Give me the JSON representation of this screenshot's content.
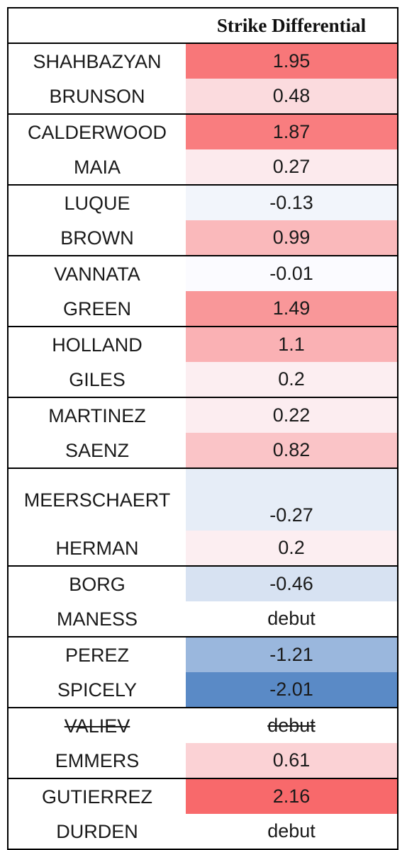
{
  "chart_data": {
    "type": "table",
    "header": "Strike Differential",
    "groups": [
      [
        {
          "name": "SHAHBAZYAN",
          "value": "1.95"
        },
        {
          "name": "BRUNSON",
          "value": "0.48"
        }
      ],
      [
        {
          "name": "CALDERWOOD",
          "value": "1.87"
        },
        {
          "name": "MAIA",
          "value": "0.27"
        }
      ],
      [
        {
          "name": "LUQUE",
          "value": "-0.13"
        },
        {
          "name": "BROWN",
          "value": "0.99"
        }
      ],
      [
        {
          "name": "VANNATA",
          "value": "-0.01"
        },
        {
          "name": "GREEN",
          "value": "1.49"
        }
      ],
      [
        {
          "name": "HOLLAND",
          "value": "1.1"
        },
        {
          "name": "GILES",
          "value": "0.2"
        }
      ],
      [
        {
          "name": "MARTINEZ",
          "value": "0.22"
        },
        {
          "name": "SAENZ",
          "value": "0.82"
        }
      ],
      [
        {
          "name": "MEERSCHAERT",
          "value": "-0.27",
          "wrap": true
        },
        {
          "name": "HERMAN",
          "value": "0.2"
        }
      ],
      [
        {
          "name": "BORG",
          "value": "-0.46"
        },
        {
          "name": "MANESS",
          "value": "debut"
        }
      ],
      [
        {
          "name": "PEREZ",
          "value": "-1.21"
        },
        {
          "name": "SPICELY",
          "value": "-2.01"
        }
      ],
      [
        {
          "name": "VALIEV",
          "value": "debut",
          "struck": true
        },
        {
          "name": "EMMERS",
          "value": "0.61"
        }
      ],
      [
        {
          "name": "GUTIERREZ",
          "value": "2.16"
        },
        {
          "name": "DURDEN",
          "value": "debut"
        }
      ]
    ],
    "color_scale": {
      "negative": "#5a8ac6",
      "zero": "#fcfcff",
      "positive": "#f8696b",
      "min": -2.01,
      "max": 2.16
    }
  }
}
